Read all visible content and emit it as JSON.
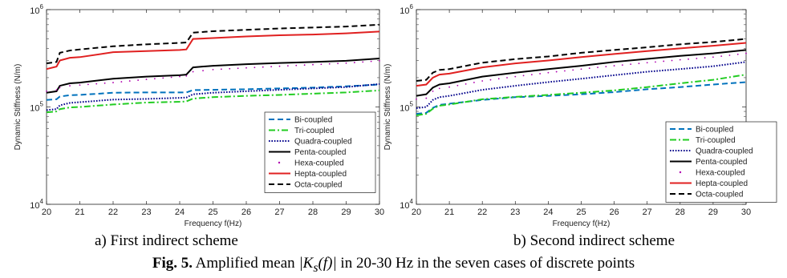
{
  "charts": [
    {
      "id": "a",
      "type": "line",
      "xlabel": "Frequency f(Hz)",
      "ylabel": "Dynamic Stiffness  (N/m)",
      "xlim": [
        20,
        30
      ],
      "ylim": [
        10000,
        1000000
      ],
      "yscale": "log",
      "x_ticks": [
        "20",
        "21",
        "22",
        "23",
        "24",
        "25",
        "26",
        "27",
        "28",
        "29",
        "30"
      ],
      "y_ticks": [
        {
          "value": 10000,
          "base": "10",
          "exp": "4"
        },
        {
          "value": 100000,
          "base": "10",
          "exp": "5"
        },
        {
          "value": 1000000,
          "base": "10",
          "exp": "6"
        }
      ],
      "legend_position": "bottom-right",
      "caption": "a) First indirect scheme",
      "series": [
        {
          "name": "Bi-coupled",
          "color": "#0072BD",
          "style": "dashed",
          "x": [
            20,
            20.3,
            20.4,
            20.7,
            21,
            22,
            23,
            24,
            24.2,
            24.4,
            25,
            26,
            27,
            28,
            29,
            30
          ],
          "y": [
            118000,
            120000,
            128000,
            132000,
            133000,
            140000,
            141000,
            141000,
            141000,
            149000,
            150000,
            152000,
            155000,
            158000,
            163000,
            170000
          ]
        },
        {
          "name": "Tri-coupled",
          "color": "#22CC22",
          "style": "dashdot",
          "x": [
            20,
            20.3,
            20.4,
            20.7,
            21,
            22,
            23,
            24,
            24.2,
            24.4,
            25,
            26,
            27,
            28,
            29,
            30
          ],
          "y": [
            88000,
            90000,
            95000,
            99000,
            100000,
            106000,
            111000,
            113000,
            114000,
            122000,
            126000,
            130000,
            133000,
            137000,
            141000,
            148000
          ]
        },
        {
          "name": "Quadra-coupled",
          "color": "#00008B",
          "style": "dotted",
          "x": [
            20,
            20.3,
            20.4,
            20.7,
            21,
            22,
            23,
            24,
            24.2,
            24.4,
            25,
            26,
            27,
            28,
            29,
            30
          ],
          "y": [
            93000,
            95000,
            104000,
            110000,
            112000,
            119000,
            121000,
            124000,
            125000,
            135000,
            140000,
            145000,
            150000,
            155000,
            160000,
            172000
          ]
        },
        {
          "name": "Penta-coupled",
          "color": "#000000",
          "style": "solid",
          "x": [
            20,
            20.3,
            20.4,
            20.7,
            21,
            22,
            23,
            24,
            24.2,
            24.4,
            25,
            26,
            27,
            28,
            29,
            30
          ],
          "y": [
            140000,
            145000,
            165000,
            175000,
            178000,
            195000,
            205000,
            212000,
            215000,
            255000,
            265000,
            275000,
            283000,
            290000,
            298000,
            315000
          ]
        },
        {
          "name": "Hexa-coupled",
          "color": "#B000B0",
          "style": "points",
          "x": [
            20,
            20.3,
            20.4,
            20.7,
            21,
            22,
            23,
            24,
            24.2,
            24.4,
            25,
            26,
            27,
            28,
            29,
            30
          ],
          "y": [
            145000,
            150000,
            158000,
            165000,
            168000,
            178000,
            192000,
            205000,
            208000,
            230000,
            242000,
            252000,
            262000,
            272000,
            282000,
            298000
          ]
        },
        {
          "name": "Hepta-coupled",
          "color": "#E02020",
          "style": "solid",
          "x": [
            20,
            20.3,
            20.4,
            20.7,
            21,
            22,
            23,
            24,
            24.2,
            24.4,
            25,
            26,
            27,
            28,
            29,
            30
          ],
          "y": [
            245000,
            260000,
            300000,
            320000,
            325000,
            365000,
            375000,
            385000,
            390000,
            500000,
            510000,
            530000,
            545000,
            555000,
            570000,
            595000
          ]
        },
        {
          "name": "Octa-coupled",
          "color": "#000000",
          "style": "dashed",
          "x": [
            20,
            20.3,
            20.4,
            20.7,
            21,
            22,
            23,
            24,
            24.2,
            24.4,
            25,
            26,
            27,
            28,
            29,
            30
          ],
          "y": [
            280000,
            290000,
            360000,
            380000,
            390000,
            420000,
            440000,
            455000,
            460000,
            580000,
            600000,
            620000,
            640000,
            655000,
            670000,
            700000
          ]
        }
      ]
    },
    {
      "id": "b",
      "type": "line",
      "xlabel": "Frequency f(Hz)",
      "ylabel": "Dynamic Stiffness  (N/m)",
      "xlim": [
        20,
        30
      ],
      "ylim": [
        10000,
        1000000
      ],
      "yscale": "log",
      "x_ticks": [
        "20",
        "21",
        "22",
        "23",
        "24",
        "25",
        "26",
        "27",
        "28",
        "29",
        "30"
      ],
      "y_ticks": [
        {
          "value": 10000,
          "base": "10",
          "exp": "4"
        },
        {
          "value": 100000,
          "base": "10",
          "exp": "5"
        },
        {
          "value": 1000000,
          "base": "10",
          "exp": "6"
        }
      ],
      "legend_position": "bottom-right",
      "caption": "b) Second indirect scheme",
      "series": [
        {
          "name": "Bi-coupled",
          "color": "#0072BD",
          "style": "dashed",
          "x": [
            20,
            20.3,
            20.5,
            20.7,
            21,
            22,
            23,
            24,
            25,
            26,
            27,
            28,
            29,
            30
          ],
          "y": [
            85000,
            87000,
            98000,
            105000,
            108000,
            118000,
            126000,
            130000,
            135000,
            142000,
            152000,
            160000,
            170000,
            180000
          ]
        },
        {
          "name": "Tri-coupled",
          "color": "#22CC22",
          "style": "dashdot",
          "x": [
            20,
            20.3,
            20.5,
            20.7,
            21,
            22,
            23,
            24,
            25,
            26,
            27,
            28,
            29,
            30
          ],
          "y": [
            82000,
            85000,
            96000,
            103000,
            106000,
            120000,
            127000,
            133000,
            140000,
            148000,
            160000,
            175000,
            190000,
            215000
          ]
        },
        {
          "name": "Quadra-coupled",
          "color": "#00008B",
          "style": "dotted",
          "x": [
            20,
            20.3,
            20.5,
            20.7,
            21,
            22,
            23,
            24,
            25,
            26,
            27,
            28,
            29,
            30
          ],
          "y": [
            97000,
            100000,
            118000,
            126000,
            130000,
            150000,
            165000,
            180000,
            195000,
            212000,
            230000,
            245000,
            262000,
            290000
          ]
        },
        {
          "name": "Penta-coupled",
          "color": "#000000",
          "style": "solid",
          "x": [
            20,
            20.3,
            20.5,
            20.7,
            21,
            22,
            23,
            24,
            25,
            26,
            27,
            28,
            29,
            30
          ],
          "y": [
            130000,
            135000,
            158000,
            170000,
            175000,
            205000,
            225000,
            245000,
            265000,
            290000,
            312000,
            335000,
            355000,
            385000
          ]
        },
        {
          "name": "Hexa-coupled",
          "color": "#B000B0",
          "style": "points",
          "x": [
            20,
            20.3,
            20.5,
            20.7,
            21,
            22,
            23,
            24,
            25,
            26,
            27,
            28,
            29,
            30
          ],
          "y": [
            120000,
            123000,
            145000,
            155000,
            160000,
            185000,
            205000,
            225000,
            245000,
            265000,
            285000,
            305000,
            325000,
            355000
          ]
        },
        {
          "name": "Hepta-coupled",
          "color": "#E02020",
          "style": "solid",
          "x": [
            20,
            20.3,
            20.5,
            20.7,
            21,
            22,
            23,
            24,
            25,
            26,
            27,
            28,
            29,
            30
          ],
          "y": [
            165000,
            170000,
            200000,
            215000,
            220000,
            255000,
            280000,
            300000,
            325000,
            350000,
            375000,
            400000,
            425000,
            455000
          ]
        },
        {
          "name": "Octa-coupled",
          "color": "#000000",
          "style": "dashed",
          "x": [
            20,
            20.3,
            20.5,
            20.7,
            21,
            22,
            23,
            24,
            25,
            26,
            27,
            28,
            29,
            30
          ],
          "y": [
            185000,
            190000,
            225000,
            240000,
            245000,
            285000,
            310000,
            330000,
            360000,
            385000,
            410000,
            440000,
            465000,
            500000
          ]
        }
      ]
    }
  ],
  "figure": {
    "label": "Fig. 5.",
    "caption_pre": " Amplified mean ",
    "caption_formula_a": "|K",
    "caption_formula_sub": "s",
    "caption_formula_b": "(f)|",
    "caption_post": " in 20-30 Hz in the seven cases of discrete points"
  }
}
